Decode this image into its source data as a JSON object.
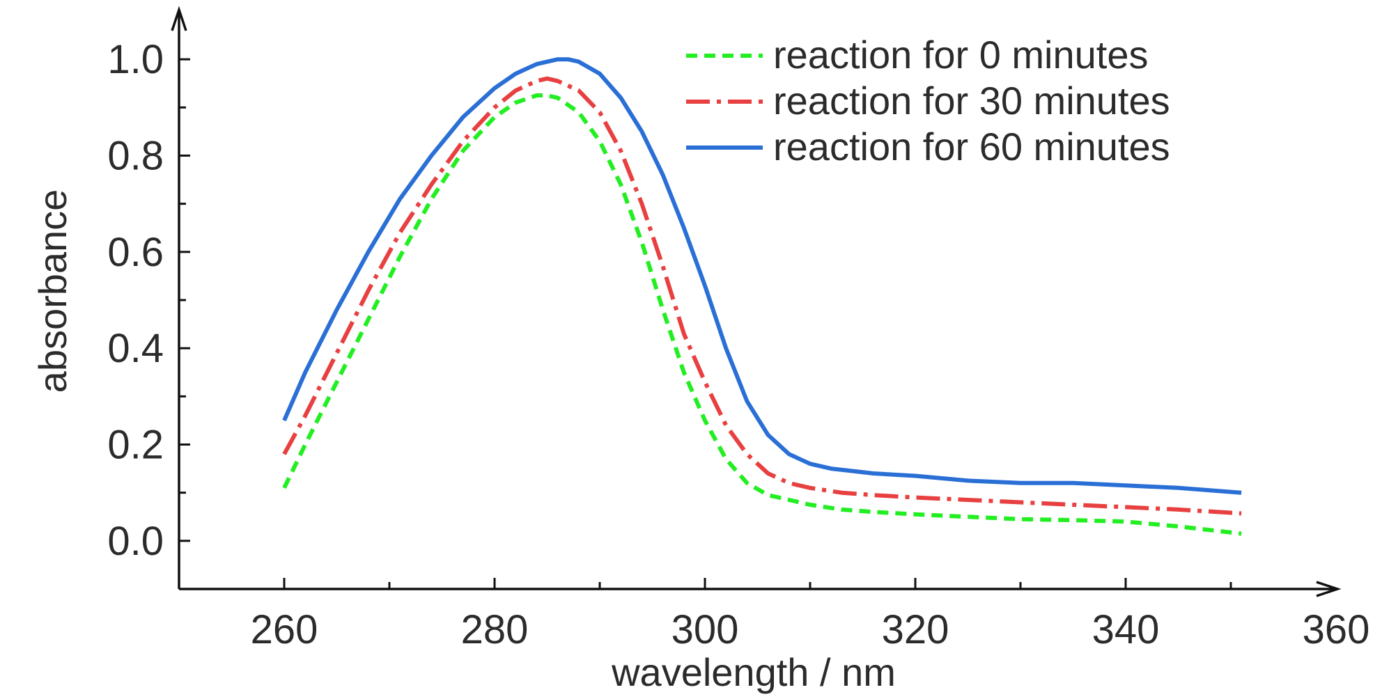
{
  "chart_data": {
    "type": "line",
    "xlabel": "wavelength / nm",
    "ylabel": "absorbance",
    "xlim": [
      250,
      360
    ],
    "ylim": [
      -0.1,
      1.1
    ],
    "xticks": [
      260,
      280,
      300,
      320,
      340,
      360
    ],
    "xtick_labels": [
      "260",
      "280",
      "300",
      "320",
      "340",
      "360"
    ],
    "yticks": [
      0.0,
      0.2,
      0.4,
      0.6,
      0.8,
      1.0
    ],
    "ytick_labels": [
      "0.0",
      "0.2",
      "0.4",
      "0.6",
      "0.8",
      "1.0"
    ],
    "grid": false,
    "legend_position": "top-right",
    "series": [
      {
        "name": "reaction for 0 minutes",
        "color": "#22ee22",
        "style": "dashed",
        "x": [
          260,
          262,
          265,
          268,
          271,
          274,
          277,
          280,
          282,
          284,
          285,
          286,
          288,
          290,
          292,
          294,
          296,
          298,
          300,
          302,
          304,
          306,
          308,
          310,
          313,
          316,
          320,
          325,
          330,
          335,
          340,
          345,
          351
        ],
        "y": [
          0.11,
          0.2,
          0.33,
          0.46,
          0.59,
          0.71,
          0.81,
          0.88,
          0.91,
          0.925,
          0.925,
          0.92,
          0.89,
          0.83,
          0.74,
          0.62,
          0.48,
          0.35,
          0.25,
          0.17,
          0.12,
          0.095,
          0.085,
          0.075,
          0.065,
          0.06,
          0.055,
          0.05,
          0.045,
          0.043,
          0.04,
          0.03,
          0.015
        ]
      },
      {
        "name": "reaction for 30 minutes",
        "color": "#e84040",
        "style": "dash-dot",
        "x": [
          260,
          262,
          265,
          268,
          271,
          274,
          277,
          280,
          282,
          284,
          285,
          286,
          288,
          290,
          292,
          294,
          296,
          298,
          300,
          302,
          304,
          306,
          308,
          310,
          313,
          316,
          320,
          325,
          330,
          335,
          340,
          345,
          351
        ],
        "y": [
          0.18,
          0.26,
          0.39,
          0.52,
          0.64,
          0.74,
          0.83,
          0.9,
          0.935,
          0.955,
          0.96,
          0.955,
          0.935,
          0.89,
          0.81,
          0.7,
          0.57,
          0.43,
          0.33,
          0.24,
          0.18,
          0.14,
          0.12,
          0.11,
          0.1,
          0.095,
          0.09,
          0.085,
          0.08,
          0.075,
          0.07,
          0.065,
          0.057
        ]
      },
      {
        "name": "reaction for 60 minutes",
        "color": "#2a6fd6",
        "style": "solid",
        "x": [
          260,
          262,
          265,
          268,
          271,
          274,
          277,
          280,
          282,
          284,
          286,
          287,
          288,
          290,
          292,
          294,
          296,
          298,
          300,
          302,
          304,
          306,
          308,
          310,
          312,
          314,
          316,
          320,
          325,
          330,
          335,
          340,
          345,
          351
        ],
        "y": [
          0.25,
          0.35,
          0.48,
          0.6,
          0.71,
          0.8,
          0.88,
          0.94,
          0.97,
          0.99,
          1.0,
          1.0,
          0.995,
          0.97,
          0.92,
          0.85,
          0.76,
          0.65,
          0.53,
          0.4,
          0.29,
          0.22,
          0.18,
          0.16,
          0.15,
          0.145,
          0.14,
          0.135,
          0.125,
          0.12,
          0.12,
          0.115,
          0.11,
          0.1
        ]
      }
    ]
  }
}
